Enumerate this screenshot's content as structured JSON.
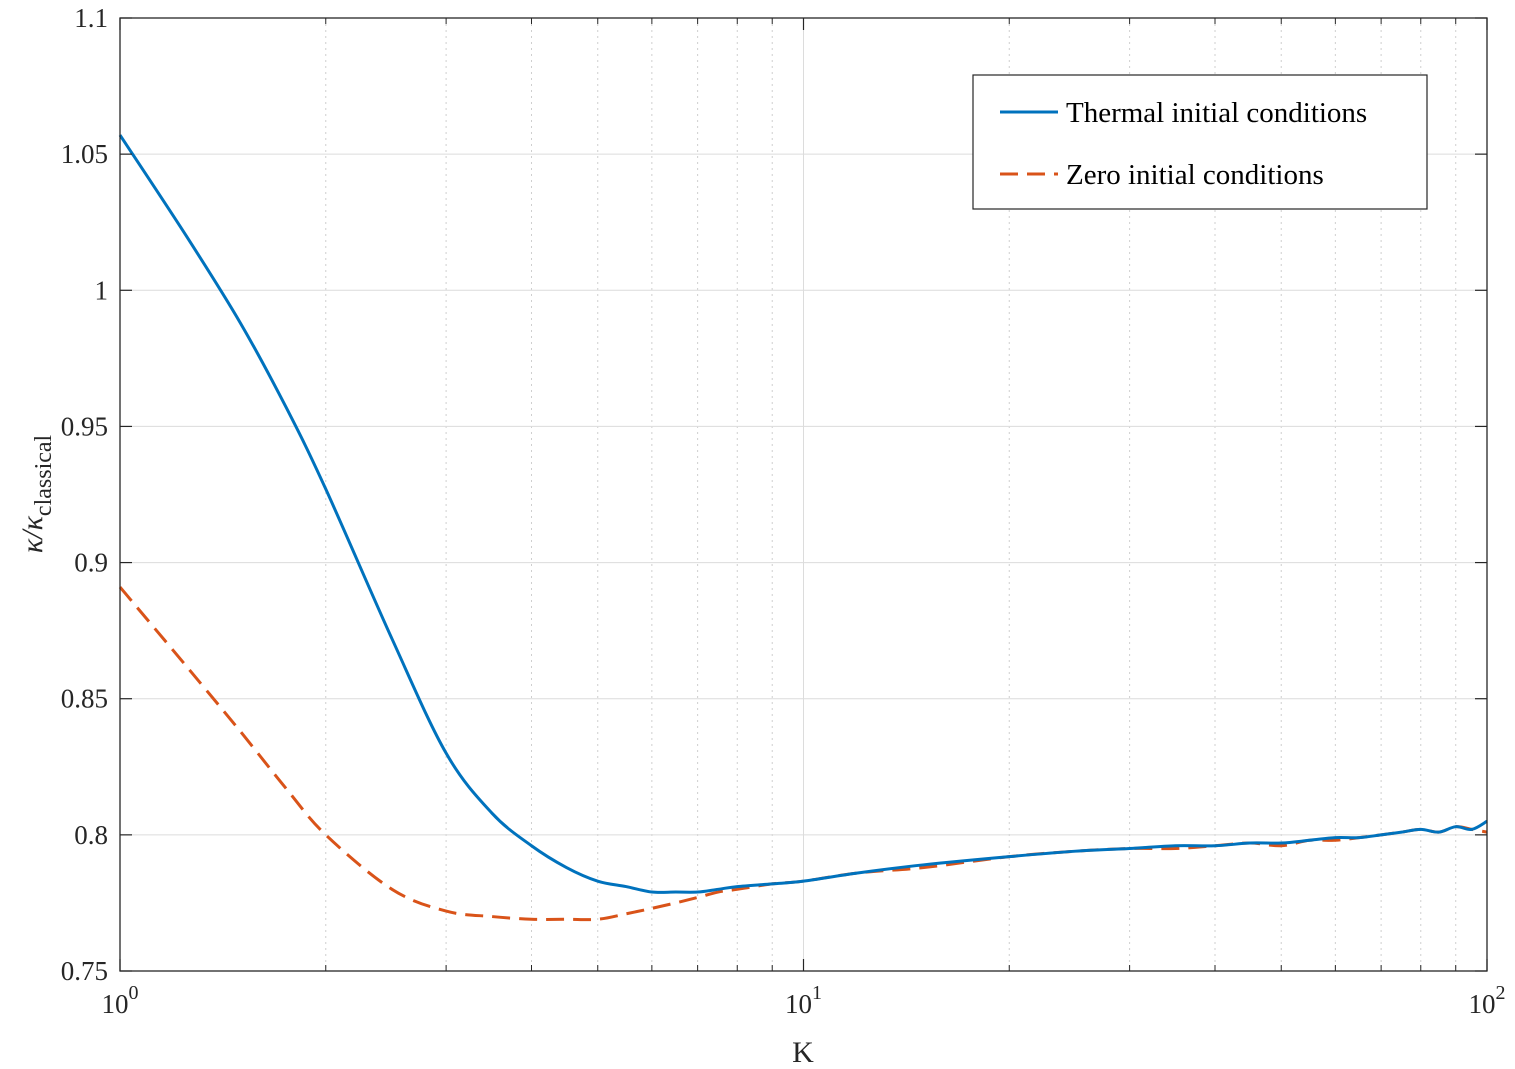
{
  "chart_data": {
    "type": "line",
    "title": "",
    "xlabel": "K",
    "ylabel": "κ/κ_classical",
    "ylabel_main": "κ/κ",
    "ylabel_sub": "classical",
    "xscale": "log",
    "xlim": [
      1,
      100
    ],
    "ylim": [
      0.75,
      1.1
    ],
    "grid": true,
    "legend_position": "top-right",
    "x_ticks": [
      {
        "value": 1,
        "base": "10",
        "exp": "0"
      },
      {
        "value": 10,
        "base": "10",
        "exp": "1"
      },
      {
        "value": 100,
        "base": "10",
        "exp": "2"
      }
    ],
    "y_ticks": [
      {
        "value": 0.75,
        "label": "0.75"
      },
      {
        "value": 0.8,
        "label": "0.8"
      },
      {
        "value": 0.85,
        "label": "0.85"
      },
      {
        "value": 0.9,
        "label": "0.9"
      },
      {
        "value": 0.95,
        "label": "0.95"
      },
      {
        "value": 1.0,
        "label": "1"
      },
      {
        "value": 1.05,
        "label": "1.05"
      },
      {
        "value": 1.1,
        "label": "1.1"
      }
    ],
    "series": [
      {
        "name": "Thermal initial conditions",
        "color": "#0072BD",
        "dash": "solid",
        "x": [
          1,
          1.25,
          1.5,
          1.75,
          2,
          2.5,
          3,
          3.5,
          4,
          4.5,
          5,
          5.5,
          6,
          6.5,
          7,
          7.5,
          8,
          9,
          10,
          12,
          15,
          20,
          25,
          30,
          35,
          40,
          45,
          50,
          55,
          60,
          65,
          70,
          75,
          80,
          85,
          90,
          95,
          100
        ],
        "y": [
          1.057,
          1.02,
          0.988,
          0.957,
          0.927,
          0.872,
          0.83,
          0.808,
          0.796,
          0.788,
          0.783,
          0.781,
          0.779,
          0.779,
          0.779,
          0.78,
          0.781,
          0.782,
          0.783,
          0.786,
          0.789,
          0.792,
          0.794,
          0.795,
          0.796,
          0.796,
          0.797,
          0.797,
          0.798,
          0.799,
          0.799,
          0.8,
          0.801,
          0.802,
          0.801,
          0.803,
          0.802,
          0.805
        ]
      },
      {
        "name": "Zero initial conditions",
        "color": "#D95319",
        "dash": "dashed",
        "x": [
          1,
          1.25,
          1.5,
          1.75,
          2,
          2.5,
          3,
          3.5,
          4,
          4.5,
          5,
          5.5,
          6,
          6.5,
          7,
          7.5,
          8,
          9,
          10,
          12,
          15,
          20,
          25,
          30,
          35,
          40,
          45,
          50,
          55,
          60,
          65,
          70,
          75,
          80,
          85,
          90,
          95,
          100
        ],
        "y": [
          0.891,
          0.862,
          0.838,
          0.817,
          0.8,
          0.78,
          0.772,
          0.77,
          0.769,
          0.769,
          0.769,
          0.771,
          0.773,
          0.775,
          0.777,
          0.779,
          0.78,
          0.782,
          0.783,
          0.786,
          0.788,
          0.792,
          0.794,
          0.795,
          0.795,
          0.796,
          0.797,
          0.796,
          0.798,
          0.798,
          0.799,
          0.8,
          0.801,
          0.802,
          0.801,
          0.803,
          0.802,
          0.801
        ]
      }
    ]
  }
}
